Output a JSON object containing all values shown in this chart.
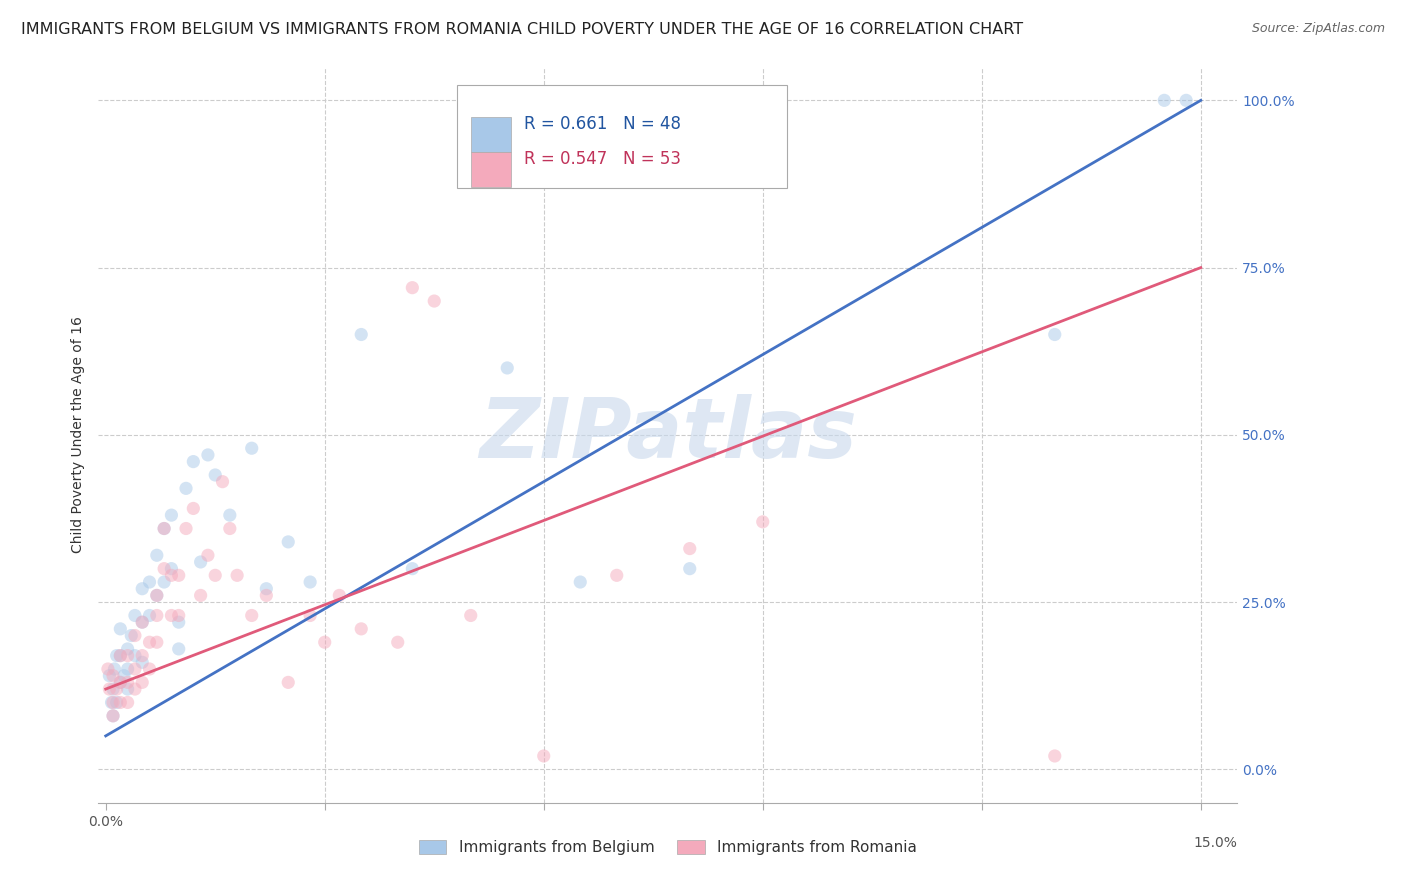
{
  "title": "IMMIGRANTS FROM BELGIUM VS IMMIGRANTS FROM ROMANIA CHILD POVERTY UNDER THE AGE OF 16 CORRELATION CHART",
  "source": "Source: ZipAtlas.com",
  "ylabel": "Child Poverty Under the Age of 16",
  "watermark": "ZIPatlas",
  "belgium_R": 0.661,
  "belgium_N": 48,
  "romania_R": 0.547,
  "romania_N": 53,
  "belgium_color": "#a8c8e8",
  "romania_color": "#f4aabc",
  "belgium_line_color": "#4472c4",
  "romania_line_color": "#e05a7a",
  "right_ytick_color": "#4472c4",
  "yticks_right_vals": [
    0.0,
    0.25,
    0.5,
    0.75,
    1.0
  ],
  "yticks_right_labels": [
    "0.0%",
    "25.0%",
    "50.0%",
    "75.0%",
    "100.0%"
  ],
  "ylim": [
    -0.05,
    1.05
  ],
  "xlim": [
    -0.001,
    0.155
  ],
  "belgium_line_x": [
    0.0,
    0.15
  ],
  "belgium_line_y": [
    0.05,
    1.0
  ],
  "romania_line_x": [
    0.0,
    0.15
  ],
  "romania_line_y": [
    0.12,
    0.75
  ],
  "belgium_scatter_x": [
    0.0005,
    0.0008,
    0.001,
    0.001,
    0.0012,
    0.0015,
    0.0015,
    0.002,
    0.002,
    0.002,
    0.0025,
    0.003,
    0.003,
    0.003,
    0.0035,
    0.004,
    0.004,
    0.005,
    0.005,
    0.005,
    0.006,
    0.006,
    0.007,
    0.007,
    0.008,
    0.008,
    0.009,
    0.009,
    0.01,
    0.01,
    0.011,
    0.012,
    0.013,
    0.014,
    0.015,
    0.017,
    0.02,
    0.022,
    0.025,
    0.028,
    0.035,
    0.042,
    0.055,
    0.065,
    0.08,
    0.13,
    0.145,
    0.148
  ],
  "belgium_scatter_y": [
    0.14,
    0.1,
    0.08,
    0.12,
    0.15,
    0.1,
    0.17,
    0.13,
    0.17,
    0.21,
    0.14,
    0.18,
    0.15,
    0.12,
    0.2,
    0.23,
    0.17,
    0.27,
    0.22,
    0.16,
    0.28,
    0.23,
    0.32,
    0.26,
    0.36,
    0.28,
    0.38,
    0.3,
    0.22,
    0.18,
    0.42,
    0.46,
    0.31,
    0.47,
    0.44,
    0.38,
    0.48,
    0.27,
    0.34,
    0.28,
    0.65,
    0.3,
    0.6,
    0.28,
    0.3,
    0.65,
    1.0,
    1.0
  ],
  "romania_scatter_x": [
    0.0003,
    0.0005,
    0.001,
    0.001,
    0.001,
    0.0015,
    0.002,
    0.002,
    0.002,
    0.003,
    0.003,
    0.003,
    0.004,
    0.004,
    0.004,
    0.005,
    0.005,
    0.005,
    0.006,
    0.006,
    0.007,
    0.007,
    0.007,
    0.008,
    0.008,
    0.009,
    0.009,
    0.01,
    0.01,
    0.011,
    0.012,
    0.013,
    0.014,
    0.015,
    0.016,
    0.017,
    0.018,
    0.02,
    0.022,
    0.025,
    0.028,
    0.03,
    0.032,
    0.035,
    0.04,
    0.042,
    0.045,
    0.05,
    0.06,
    0.07,
    0.08,
    0.09,
    0.13
  ],
  "romania_scatter_y": [
    0.15,
    0.12,
    0.08,
    0.1,
    0.14,
    0.12,
    0.1,
    0.13,
    0.17,
    0.1,
    0.13,
    0.17,
    0.12,
    0.15,
    0.2,
    0.13,
    0.17,
    0.22,
    0.15,
    0.19,
    0.19,
    0.23,
    0.26,
    0.3,
    0.36,
    0.23,
    0.29,
    0.23,
    0.29,
    0.36,
    0.39,
    0.26,
    0.32,
    0.29,
    0.43,
    0.36,
    0.29,
    0.23,
    0.26,
    0.13,
    0.23,
    0.19,
    0.26,
    0.21,
    0.19,
    0.72,
    0.7,
    0.23,
    0.02,
    0.29,
    0.33,
    0.37,
    0.02
  ],
  "scatter_size": 90,
  "scatter_alpha": 0.5,
  "title_fontsize": 11.5,
  "axis_label_fontsize": 10,
  "tick_fontsize": 10,
  "legend_fontsize": 12
}
